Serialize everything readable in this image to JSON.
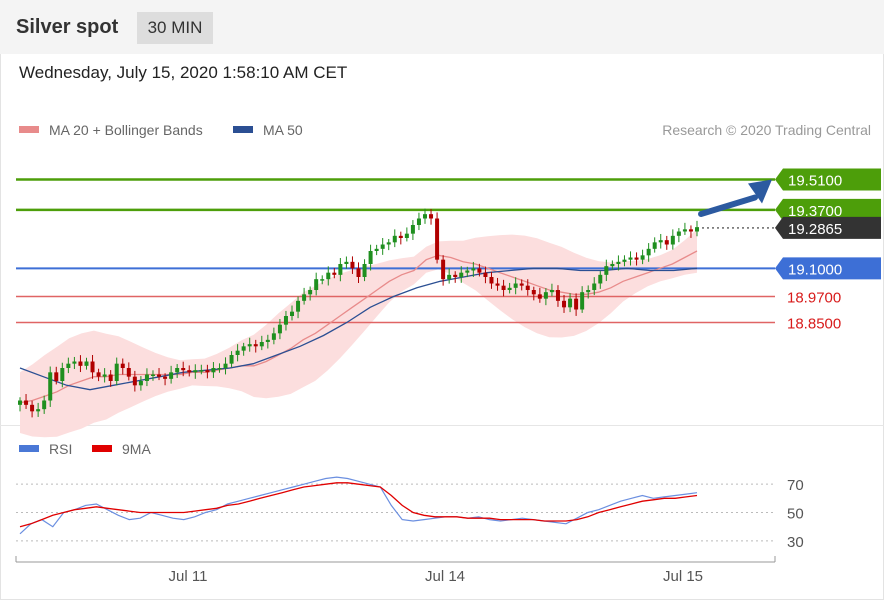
{
  "header": {
    "title": "Silver spot",
    "interval": "30 MIN"
  },
  "timestamp": "Wednesday, July 15, 2020 1:58:10 AM CET",
  "legend": {
    "ma20": "MA 20 + Bollinger Bands",
    "ma50": "MA 50",
    "credit": "Research © 2020 Trading Central",
    "rsi": "RSI",
    "rsi_ma": "9MA"
  },
  "colors": {
    "bullish": "#1f8f1f",
    "bearish": "#b00000",
    "target": "#4d9e0a",
    "pivot": "#3d6fd6",
    "support": "#e06464",
    "current": "#333333",
    "ma20": "#e88b8b",
    "ma50": "#2b4f93",
    "band": "#fcdede",
    "arrow": "#2c5aa0"
  },
  "chart_data": [
    {
      "type": "candlestick",
      "ylim": [
        18.4,
        19.6
      ],
      "x_ticks": [
        "Jul 11",
        "Jul 14",
        "Jul 15"
      ],
      "levels": [
        {
          "role": "target",
          "value": "19.5100"
        },
        {
          "role": "target",
          "value": "19.3700"
        },
        {
          "role": "current",
          "value": "19.2865"
        },
        {
          "role": "pivot",
          "value": "19.1000"
        },
        {
          "role": "support",
          "value": "18.9700"
        },
        {
          "role": "support",
          "value": "18.8500"
        }
      ],
      "series": [
        {
          "name": "Price",
          "close": [
            18.49,
            18.47,
            18.44,
            18.45,
            18.49,
            18.62,
            18.58,
            18.64,
            18.66,
            18.67,
            18.65,
            18.67,
            18.62,
            18.6,
            18.61,
            18.58,
            18.66,
            18.64,
            18.6,
            18.56,
            18.58,
            18.61,
            18.61,
            18.6,
            18.59,
            18.62,
            18.64,
            18.63,
            18.62,
            18.63,
            18.63,
            18.62,
            18.64,
            18.64,
            18.66,
            18.7,
            18.72,
            18.74,
            18.75,
            18.74,
            18.76,
            18.77,
            18.8,
            18.84,
            18.88,
            18.9,
            18.95,
            18.98,
            19.0,
            19.05,
            19.05,
            19.08,
            19.07,
            19.12,
            19.13,
            19.1,
            19.06,
            19.12,
            19.18,
            19.19,
            19.21,
            19.22,
            19.25,
            19.24,
            19.26,
            19.3,
            19.33,
            19.35,
            19.33,
            19.14,
            19.05,
            19.07,
            19.06,
            19.08,
            19.09,
            19.1,
            19.08,
            19.06,
            19.03,
            19.02,
            19.0,
            19.01,
            19.03,
            19.02,
            19.0,
            18.98,
            18.96,
            18.99,
            19.0,
            18.95,
            18.92,
            18.96,
            18.91,
            18.99,
            19.0,
            19.03,
            19.07,
            19.11,
            19.12,
            19.13,
            19.14,
            19.15,
            19.14,
            19.16,
            19.19,
            19.22,
            19.23,
            19.21,
            19.25,
            19.27,
            19.28,
            19.27,
            19.29
          ]
        },
        {
          "name": "MA 20",
          "values": [
            18.48,
            18.49,
            18.51,
            18.53,
            18.56,
            18.58,
            18.6,
            18.6,
            18.61,
            18.61,
            18.61,
            18.61,
            18.61,
            18.61,
            18.62,
            18.62,
            18.63,
            18.64,
            18.65,
            18.65,
            18.67,
            18.7,
            18.73,
            18.77,
            18.8,
            18.84,
            18.88,
            18.92,
            18.96,
            19.0,
            19.04,
            19.07,
            19.09,
            19.14,
            19.16,
            19.15,
            19.13,
            19.12,
            19.1,
            19.08,
            19.06,
            19.04,
            19.02,
            19.0,
            18.99,
            18.98,
            18.98,
            18.99,
            19.01,
            19.04,
            19.06,
            19.08,
            19.1,
            19.12,
            19.15,
            19.18
          ]
        },
        {
          "name": "MA 50",
          "values": [
            18.64,
            18.6,
            18.56,
            18.54,
            18.56,
            18.58,
            18.6,
            18.62,
            18.63,
            18.64,
            18.66,
            18.7,
            18.74,
            18.79,
            18.85,
            18.92,
            18.97,
            19.01,
            19.04,
            19.06,
            19.08,
            19.09,
            19.1,
            19.1,
            19.09,
            19.09,
            19.1,
            19.09,
            19.09,
            19.1
          ]
        }
      ]
    },
    {
      "type": "line",
      "ylim": [
        20,
        80
      ],
      "y_ticks": [
        "70",
        "50",
        "30"
      ],
      "series": [
        {
          "name": "RSI",
          "values": [
            35,
            42,
            45,
            40,
            50,
            52,
            55,
            56,
            52,
            48,
            45,
            46,
            50,
            48,
            46,
            45,
            47,
            50,
            52,
            56,
            58,
            60,
            62,
            64,
            66,
            68,
            70,
            72,
            74,
            75,
            74,
            72,
            70,
            68,
            55,
            45,
            44,
            45,
            46,
            47,
            47,
            46,
            47,
            45,
            44,
            45,
            46,
            45,
            44,
            43,
            42,
            46,
            50,
            52,
            55,
            58,
            60,
            62,
            60,
            61,
            62,
            63,
            64
          ]
        },
        {
          "name": "9MA",
          "values": [
            40,
            42,
            45,
            48,
            50,
            52,
            53,
            54,
            53,
            52,
            51,
            50,
            50,
            50,
            50,
            50,
            51,
            52,
            53,
            55,
            56,
            58,
            60,
            62,
            64,
            66,
            68,
            69,
            70,
            71,
            71,
            70,
            69,
            68,
            62,
            55,
            50,
            48,
            47,
            47,
            47,
            46,
            46,
            46,
            45,
            45,
            45,
            45,
            44,
            44,
            44,
            45,
            47,
            50,
            52,
            54,
            56,
            58,
            59,
            60,
            60,
            61,
            62
          ]
        }
      ]
    }
  ]
}
